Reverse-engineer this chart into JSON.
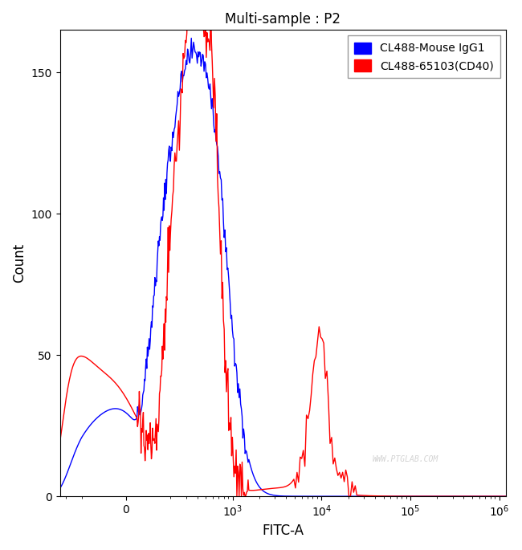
{
  "title": "Multi-sample : P2",
  "xlabel": "FITC-A",
  "ylabel": "Count",
  "ylim": [
    0,
    165
  ],
  "yticks": [
    0,
    50,
    100,
    150
  ],
  "legend_labels": [
    "CL488-Mouse IgG1",
    "CL488-65103(CD40)"
  ],
  "blue_color": "#0000FF",
  "red_color": "#FF0000",
  "watermark": "WWW.PTGLAB.COM",
  "background_color": "#FFFFFF",
  "linewidth": 1.0,
  "linthresh": 200,
  "xlim_left": -350,
  "xlim_right": 1200000
}
